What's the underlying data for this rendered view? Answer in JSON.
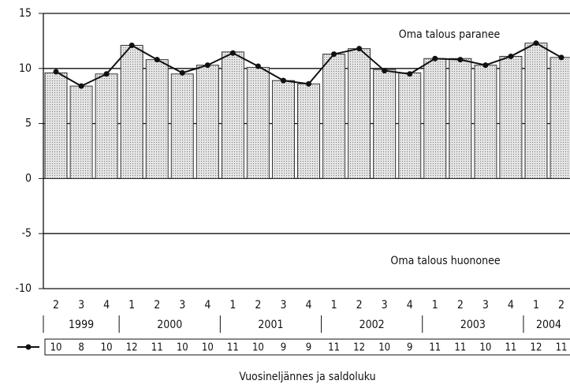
{
  "chart_data": {
    "type": "bar",
    "xlabel": "Vuosineljännes ja saldoluku",
    "annotations": [
      "Oma talous paranee",
      "Oma talous huononee"
    ],
    "categories": [
      "2",
      "3",
      "4",
      "1",
      "2",
      "3",
      "4",
      "1",
      "2",
      "3",
      "4",
      "1",
      "2",
      "3",
      "4",
      "1",
      "2",
      "3",
      "4",
      "1",
      "2"
    ],
    "years": [
      {
        "label": "1999",
        "count": 3
      },
      {
        "label": "2000",
        "count": 4
      },
      {
        "label": "2001",
        "count": 4
      },
      {
        "label": "2002",
        "count": 4
      },
      {
        "label": "2003",
        "count": 4
      },
      {
        "label": "2004",
        "count": 2
      }
    ],
    "series": [
      {
        "type": "bar",
        "color": "#c8c8c8",
        "values": [
          9.6,
          8.4,
          9.5,
          12.1,
          10.8,
          9.5,
          10.3,
          11.5,
          10.1,
          8.9,
          8.6,
          11.3,
          11.8,
          9.9,
          9.6,
          10.9,
          10.9,
          10.3,
          11.1,
          12.3,
          11.0
        ]
      },
      {
        "type": "line",
        "color": "#111111",
        "values": [
          9.7,
          8.4,
          9.5,
          12.1,
          10.8,
          9.6,
          10.3,
          11.4,
          10.2,
          8.9,
          8.6,
          11.3,
          11.8,
          9.8,
          9.5,
          10.9,
          10.8,
          10.3,
          11.1,
          12.3,
          11.0
        ],
        "value_labels": [
          "10",
          "8",
          "10",
          "12",
          "11",
          "10",
          "10",
          "11",
          "10",
          "9",
          "9",
          "11",
          "12",
          "10",
          "9",
          "11",
          "11",
          "10",
          "11",
          "12",
          "11"
        ]
      }
    ],
    "ylim": [
      -10,
      15
    ],
    "yticks": [
      -10,
      -5,
      0,
      5,
      10,
      15
    ],
    "grid": true
  }
}
